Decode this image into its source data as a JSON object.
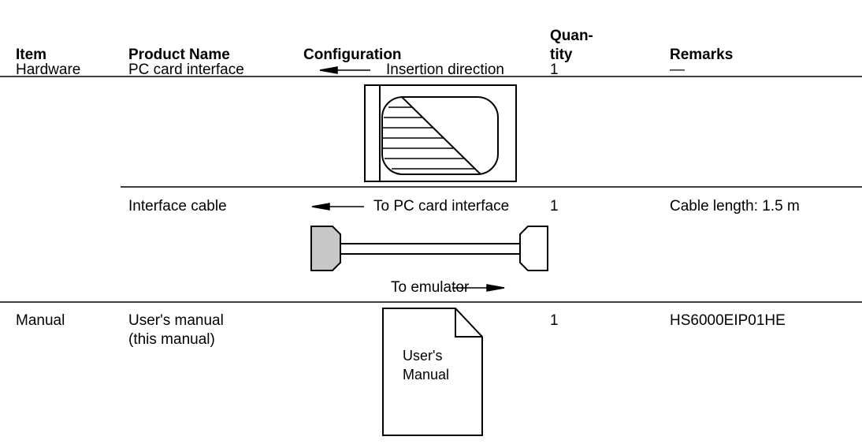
{
  "table": {
    "headers": [
      "Item",
      "Product Name",
      "Configuration",
      "Quan-\ntity",
      "Remarks"
    ],
    "rows": [
      {
        "item": "Hardware",
        "product": "PC card interface",
        "config_labels": [
          "Insertion direction"
        ],
        "quantity": 1,
        "remarks": "—"
      },
      {
        "product": "Interface cable",
        "config_labels": [
          "To PC card interface",
          "To emulator"
        ],
        "quantity": 1,
        "remarks": "Cable length:  1.5 m"
      },
      {
        "item": "Manual",
        "product": "User's manual\n(this manual)",
        "config_labels": [
          "User's\nManual"
        ],
        "quantity": 1,
        "remarks": "HS6000EIP01HE"
      }
    ]
  }
}
